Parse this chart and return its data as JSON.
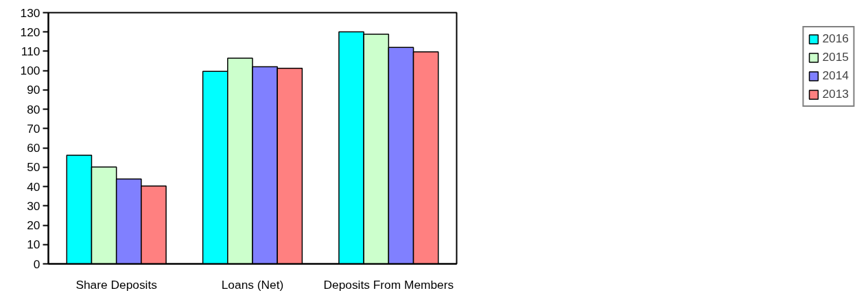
{
  "chart_data": {
    "type": "bar",
    "categories": [
      "Share Deposits",
      "Loans (Net)",
      "Deposits From Members"
    ],
    "series": [
      {
        "name": "2016",
        "color": "#00ffff",
        "values": [
          56.2,
          99.6,
          120.1
        ]
      },
      {
        "name": "2015",
        "color": "#ccffcc",
        "values": [
          50.1,
          106.4,
          118.8
        ]
      },
      {
        "name": "2014",
        "color": "#8080ff",
        "values": [
          43.9,
          102.0,
          112.0
        ]
      },
      {
        "name": "2013",
        "color": "#ff8080",
        "values": [
          40.3,
          101.2,
          109.7
        ]
      }
    ],
    "ylim": [
      0,
      130
    ],
    "yticks": [
      0,
      10,
      20,
      30,
      40,
      50,
      60,
      70,
      80,
      90,
      100,
      110,
      120,
      130
    ],
    "grid": false,
    "legend": "right"
  }
}
